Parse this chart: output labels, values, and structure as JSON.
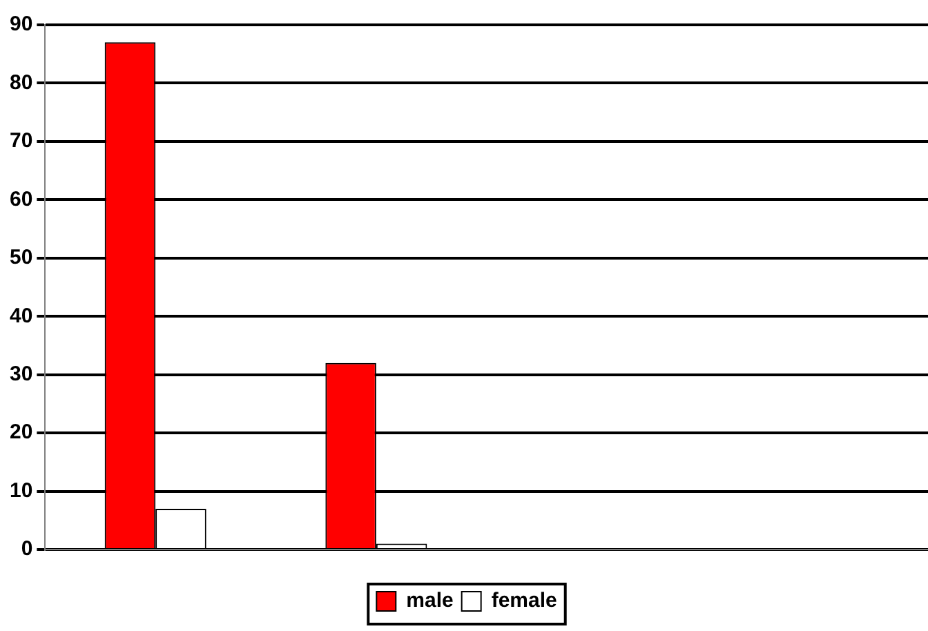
{
  "chart_data": {
    "type": "bar",
    "categories": [
      null,
      null,
      null,
      null
    ],
    "series": [
      {
        "name": "male",
        "color": "#ff0000",
        "values": [
          87,
          32,
          null,
          null
        ]
      },
      {
        "name": "female",
        "color": "#ffffff",
        "values": [
          7,
          1,
          null,
          null
        ]
      }
    ],
    "ylim": [
      0,
      90
    ],
    "yticks": [
      0,
      10,
      20,
      30,
      40,
      50,
      60,
      70,
      80,
      90
    ],
    "grid": "y",
    "legend": "bottom"
  }
}
